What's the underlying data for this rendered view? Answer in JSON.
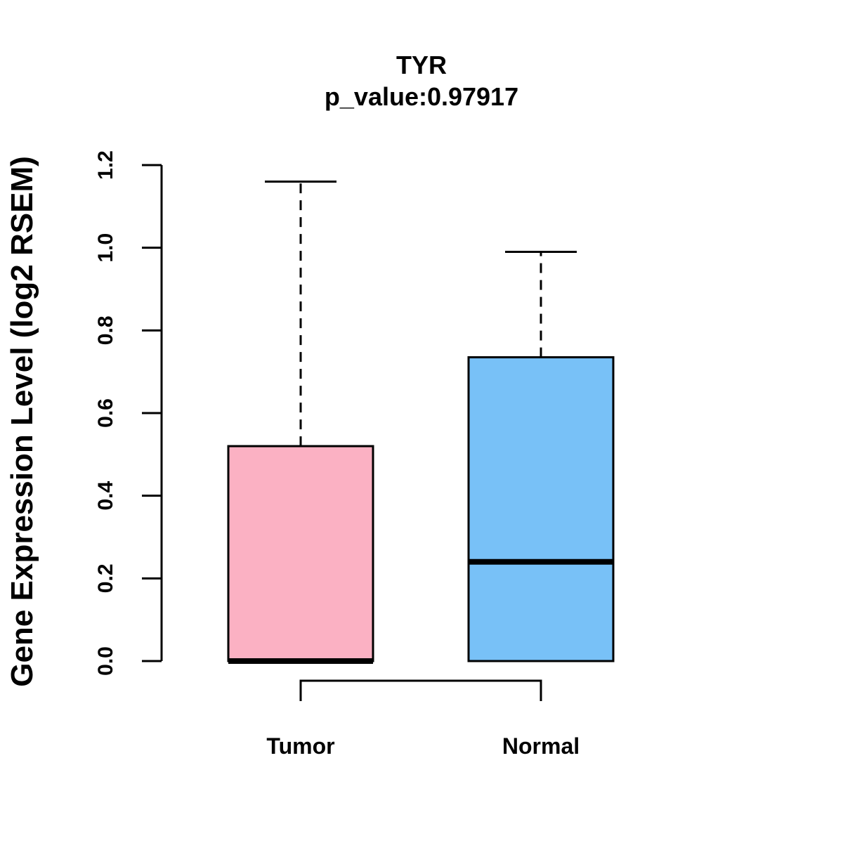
{
  "chart_data": {
    "type": "boxplot",
    "title": "TYR",
    "subtitle": "p_value:0.97917",
    "xlabel": "",
    "ylabel": "Gene Expression Level (log2 RSEM)",
    "ylim": [
      0,
      1.2
    ],
    "yticks": [
      0,
      0.2,
      0.4,
      0.6,
      0.8,
      1.0,
      1.2
    ],
    "ytick_labels": [
      "0.0",
      "0.2",
      "0.4",
      "0.6",
      "0.8",
      "1.0",
      "1.2"
    ],
    "categories": [
      "Tumor",
      "Normal"
    ],
    "groups": [
      {
        "name": "Tumor",
        "min": 0.0,
        "q1": 0.0,
        "median": 0.0,
        "q3": 0.52,
        "max": 1.16,
        "color": "#FBB1C3"
      },
      {
        "name": "Normal",
        "min": 0.0,
        "q1": 0.0,
        "median": 0.24,
        "q3": 0.735,
        "max": 0.99,
        "color": "#78C1F7"
      }
    ],
    "comparison_bracket": [
      "Tumor",
      "Normal"
    ],
    "grid": false
  }
}
